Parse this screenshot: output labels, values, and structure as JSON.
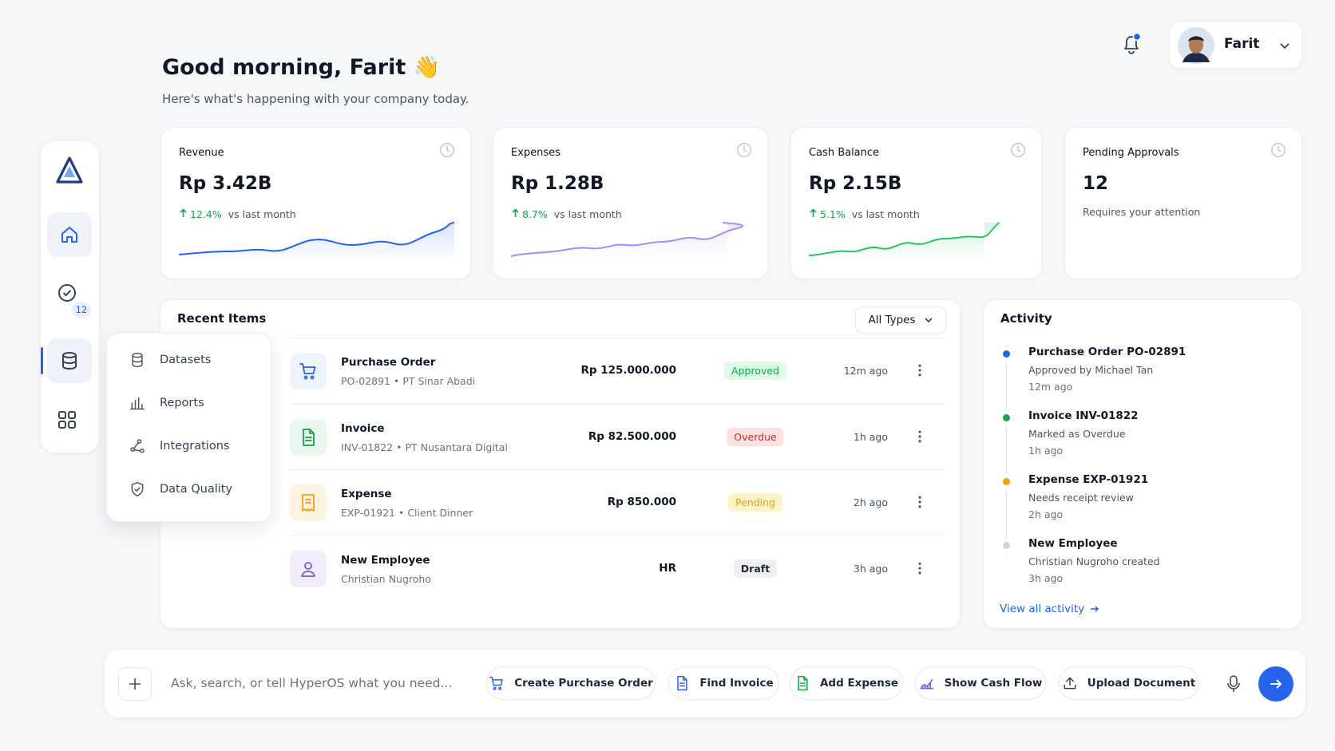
{
  "header": {
    "greeting": "Good morning, Farit 👋",
    "subtitle": "Here's what's happening with your company today.",
    "user": "Farit"
  },
  "sidebar": {
    "badge": "12"
  },
  "menu": [
    "Datasets",
    "Reports",
    "Integrations",
    "Data Quality"
  ],
  "stats": [
    {
      "label": "Revenue",
      "value": "Rp 3.42B",
      "change": "12.4%",
      "note": "vs last month"
    },
    {
      "label": "Expenses",
      "value": "Rp 1.28B",
      "change": "8.7%",
      "note": "vs last month"
    },
    {
      "label": "Cash Balance",
      "value": "Rp 2.15B",
      "change": "5.1%",
      "note": "vs last month"
    },
    {
      "label": "Pending Approvals",
      "value": "12",
      "note": "Requires your attention"
    }
  ],
  "recent": {
    "title": "Recent Items",
    "filter": "All Types",
    "rows": [
      {
        "name": "Purchase Order",
        "ref": "PO-02891 • PT Sinar Abadi",
        "amount": "Rp 125.000.000",
        "status": "Approved",
        "time": "12m ago"
      },
      {
        "name": "Invoice",
        "ref": "INV-01822 • PT Nusantara Digital",
        "amount": "Rp 82.500.000",
        "status": "Overdue",
        "time": "1h ago"
      },
      {
        "name": "Expense",
        "ref": "EXP-01921 • Client Dinner",
        "amount": "Rp 850.000",
        "status": "Pending",
        "time": "2h ago"
      },
      {
        "name": "New Employee",
        "ref": "Christian Nugroho",
        "amount": "HR",
        "status": "Draft",
        "time": "3h ago"
      }
    ]
  },
  "activity": {
    "title": "Activity",
    "items": [
      {
        "title": "Purchase Order PO-02891",
        "detail": "Approved by Michael Tan",
        "time": "12m ago"
      },
      {
        "title": "Invoice INV-01822",
        "detail": "Marked as Overdue",
        "time": "1h ago"
      },
      {
        "title": "Expense EXP-01921",
        "detail": "Needs receipt review",
        "time": "2h ago"
      },
      {
        "title": "New Employee",
        "detail": "Christian Nugroho created",
        "time": "3h ago"
      }
    ],
    "link": "View all activity"
  },
  "composer": {
    "placeholder": "Ask, search, or tell HyperOS what you need...",
    "actions": [
      "Create Purchase Order",
      "Find Invoice",
      "Add Expense",
      "Show Cash Flow",
      "Upload Document"
    ]
  }
}
